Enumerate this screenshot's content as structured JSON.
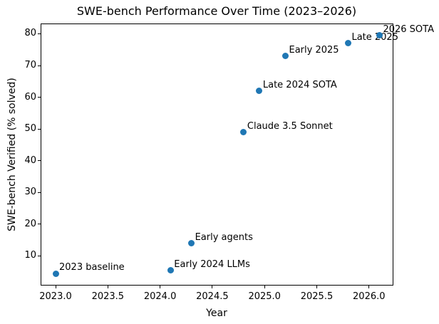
{
  "chart_data": {
    "type": "scatter",
    "title": "SWE-bench Performance Over Time (2023–2026)",
    "xlabel": "Year",
    "ylabel": "SWE-bench Verified (% solved)",
    "points": [
      {
        "x": 2023.0,
        "y": 4.5,
        "label": "2023 baseline"
      },
      {
        "x": 2024.1,
        "y": 5.5,
        "label": "Early 2024 LLMs"
      },
      {
        "x": 2024.3,
        "y": 14.0,
        "label": "Early agents"
      },
      {
        "x": 2024.8,
        "y": 49.0,
        "label": "Claude 3.5 Sonnet"
      },
      {
        "x": 2024.95,
        "y": 62.0,
        "label": "Late 2024 SOTA"
      },
      {
        "x": 2025.2,
        "y": 73.0,
        "label": "Early 2025"
      },
      {
        "x": 2025.8,
        "y": 77.0,
        "label": "Late 2025"
      },
      {
        "x": 2026.1,
        "y": 79.5,
        "label": "2026 SOTA"
      }
    ],
    "xticks": [
      2023.0,
      2023.5,
      2024.0,
      2024.5,
      2025.0,
      2025.5,
      2026.0
    ],
    "xtick_labels": [
      "2023.0",
      "2023.5",
      "2024.0",
      "2024.5",
      "2025.0",
      "2025.5",
      "2026.0"
    ],
    "yticks": [
      10,
      20,
      30,
      40,
      50,
      60,
      70,
      80
    ],
    "ytick_labels": [
      "10",
      "20",
      "30",
      "40",
      "50",
      "60",
      "70",
      "80"
    ],
    "xlim": [
      2022.86,
      2026.23
    ],
    "ylim": [
      0.8,
      83.14
    ],
    "grid": false,
    "legend": null,
    "marker_color": "#1f77b4",
    "text_color": "#000000",
    "background_color": "#ffffff"
  }
}
